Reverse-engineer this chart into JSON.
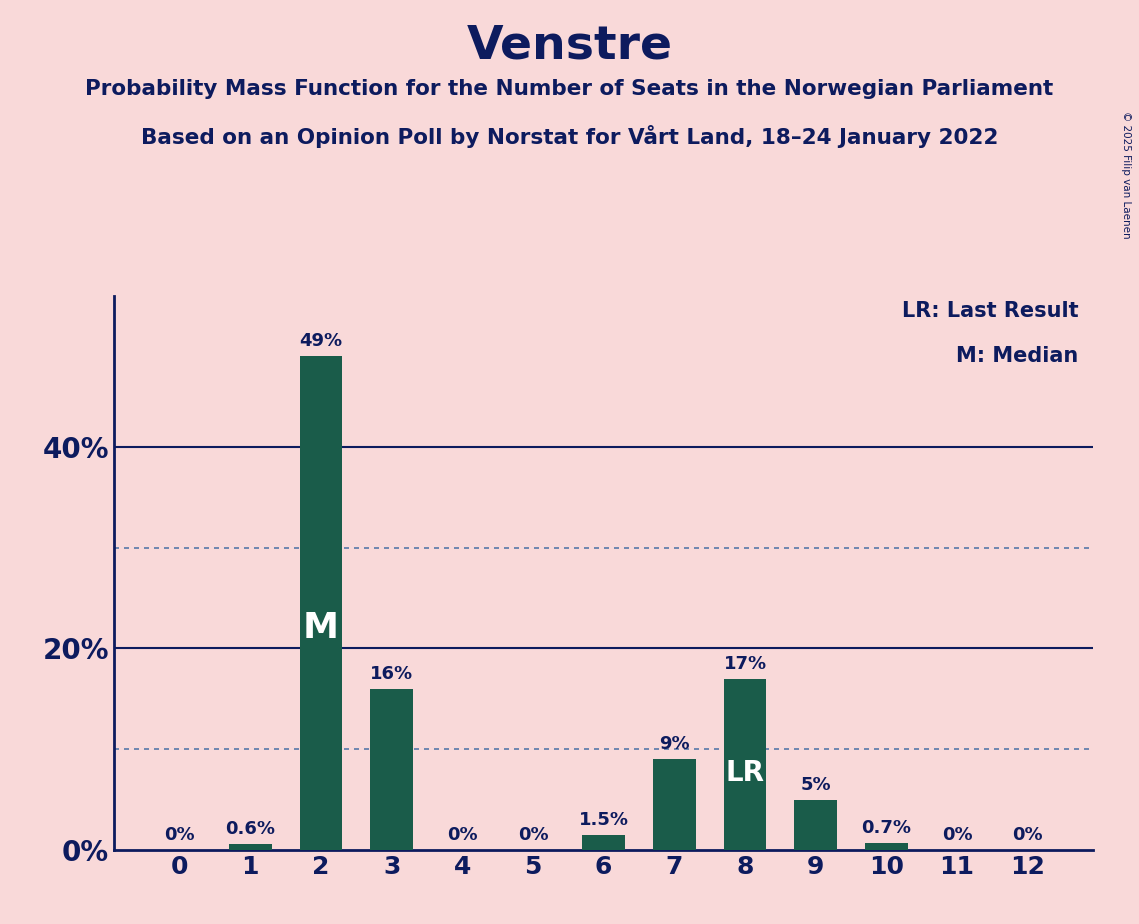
{
  "title": "Venstre",
  "subtitle1": "Probability Mass Function for the Number of Seats in the Norwegian Parliament",
  "subtitle2": "Based on an Opinion Poll by Norstat for Vårt Land, 18–24 January 2022",
  "copyright": "© 2025 Filip van Laenen",
  "categories": [
    0,
    1,
    2,
    3,
    4,
    5,
    6,
    7,
    8,
    9,
    10,
    11,
    12
  ],
  "values": [
    0.0,
    0.6,
    49.0,
    16.0,
    0.0,
    0.0,
    1.5,
    9.0,
    17.0,
    5.0,
    0.7,
    0.0,
    0.0
  ],
  "labels": [
    "0%",
    "0.6%",
    "49%",
    "16%",
    "0%",
    "0%",
    "1.5%",
    "9%",
    "17%",
    "5%",
    "0.7%",
    "0%",
    "0%"
  ],
  "bar_color": "#1a5c4a",
  "background_color": "#f9d9d9",
  "title_color": "#0d1b5e",
  "axis_color": "#0d1b5e",
  "grid_color": "#0d1b5e",
  "dotted_grid_color": "#5878a8",
  "label_color_outside": "#0d1b5e",
  "label_color_inside": "#ffffff",
  "median_bar": 2,
  "lr_bar": 8,
  "legend_lr": "LR: Last Result",
  "legend_m": "M: Median",
  "ylim": [
    0,
    55
  ],
  "solid_gridlines": [
    20,
    40
  ],
  "dotted_gridlines": [
    10,
    30
  ],
  "yticks": [
    0,
    20,
    40
  ],
  "ytick_labels": [
    "0%",
    "20%",
    "40%"
  ]
}
